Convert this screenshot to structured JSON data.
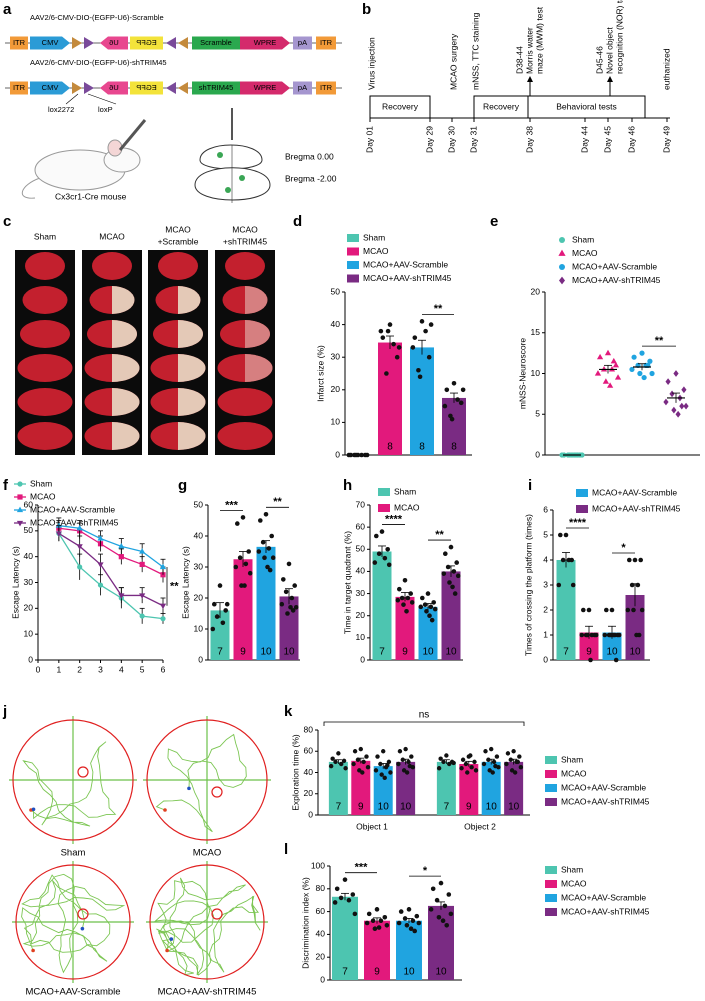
{
  "panel_labels": [
    "a",
    "b",
    "c",
    "d",
    "e",
    "f",
    "g",
    "h",
    "i",
    "j",
    "k",
    "l"
  ],
  "construct": {
    "vectors": [
      {
        "title": "AAV2/6-CMV-DIO-(EGFP-U6)-Scramble",
        "elements": [
          "ITR",
          "CMV",
          "U6",
          "EGFP",
          "Scramble",
          "WPRE",
          "pA",
          "ITR"
        ]
      },
      {
        "title": "AAV2/6-CMV-DIO-(EGFP-U6)-shTRIM45",
        "elements": [
          "ITR",
          "CMV",
          "U6",
          "EGFP",
          "shTRIM45",
          "WPRE",
          "pA",
          "ITR"
        ]
      }
    ],
    "lox_labels": [
      "lox2272",
      "loxP"
    ],
    "mouse": "Cx3cr1-Cre mouse",
    "bregma": [
      "Bregma 0.00",
      "Bregma -2.00"
    ]
  },
  "timeline": {
    "events": [
      [
        "Virus injection"
      ],
      [
        "MCAO surgery"
      ],
      [
        "mNSS, TTC staining"
      ],
      [
        "D38-44",
        "Morris water",
        "maze (MWM) test"
      ],
      [
        "D45-46",
        "Novel object",
        "recognition (NOR) task"
      ],
      [
        "euthanized"
      ]
    ],
    "boxes": [
      "Recovery",
      "Recovery",
      "Behavioral tests"
    ],
    "days": [
      "Day 01",
      "Day 29",
      "Day 30",
      "Day 31",
      "Day 38",
      "Day 44",
      "Day 45",
      "Day 46",
      "Day 49"
    ]
  },
  "slices": {
    "groups": [
      [
        "Sham"
      ],
      [
        "MCAO"
      ],
      [
        "MCAO",
        "+Scramble"
      ],
      [
        "MCAO",
        "+shTRIM45"
      ]
    ]
  },
  "mazes": {
    "groups": [
      "Sham",
      "MCAO",
      "MCAO+AAV-Scramble",
      "MCAO+AAV-shTRIM45"
    ]
  },
  "chart_data": [
    {
      "type": "bar",
      "ylabel": "Infarct size (%)",
      "ylim": [
        0,
        50
      ],
      "yticks": [
        0,
        10,
        20,
        30,
        40,
        50
      ],
      "values": [
        0,
        34.5,
        33,
        17.5
      ],
      "errors": [
        0,
        2,
        2.2,
        1.5
      ],
      "points": [
        [
          0,
          0,
          0,
          0,
          0,
          0,
          0,
          0
        ],
        [
          40,
          36,
          30,
          25,
          34,
          38,
          33,
          38
        ],
        [
          41,
          36,
          30,
          26,
          38,
          33,
          40,
          24
        ],
        [
          22,
          20,
          16,
          12,
          17,
          15,
          20,
          11
        ]
      ],
      "n_labels": [
        null,
        "8",
        "8",
        "8"
      ],
      "colors": [
        "#4dc5b0",
        "#e2197c",
        "#20a4e0",
        "#7a2b83"
      ],
      "legend": [
        {
          "name": "Sham",
          "color": "#4dc5b0"
        },
        {
          "name": "MCAO",
          "color": "#e2197c"
        },
        {
          "name": "MCAO+AAV-Scramble",
          "color": "#20a4e0"
        },
        {
          "name": "MCAO+AAV-shTRIM45",
          "color": "#7a2b83"
        }
      ],
      "significance": [
        {
          "groups": [
            2,
            3
          ],
          "label": "**"
        }
      ]
    },
    {
      "type": "dot",
      "ylabel": "mNSS-Neuroscore",
      "ylim": [
        0,
        20
      ],
      "yticks": [
        0,
        5,
        10,
        15,
        20
      ],
      "values": [
        0,
        10.5,
        10.8,
        7
      ],
      "errors": [
        0,
        0.5,
        0.4,
        0.6
      ],
      "points": [
        [
          0,
          0,
          0,
          0,
          0,
          0,
          0,
          0,
          0,
          0
        ],
        [
          12.5,
          12,
          11,
          10.5,
          10.5,
          10,
          9.5,
          9,
          8.5,
          11.5
        ],
        [
          12.5,
          12,
          11.5,
          11,
          11,
          10.5,
          10,
          10,
          9.5,
          11
        ],
        [
          10,
          9,
          8,
          7.5,
          7,
          6.5,
          6,
          5.5,
          5,
          6
        ]
      ],
      "colors": [
        "#4dc5b0",
        "#e2197c",
        "#20a4e0",
        "#7a2b83"
      ],
      "markers": [
        "circle",
        "triangle",
        "circle",
        "diamond"
      ],
      "legend": [
        {
          "name": "Sham",
          "color": "#4dc5b0"
        },
        {
          "name": "MCAO",
          "color": "#e2197c"
        },
        {
          "name": "MCAO+AAV-Scramble",
          "color": "#20a4e0"
        },
        {
          "name": "MCAO+AAV-shTRIM45",
          "color": "#7a2b83"
        }
      ],
      "significance": [
        {
          "groups": [
            2,
            3
          ],
          "label": "**"
        }
      ]
    },
    {
      "type": "line",
      "ylabel": "Escape Latency (s)",
      "x": [
        1,
        2,
        3,
        4,
        5,
        6
      ],
      "xlim": [
        0,
        6
      ],
      "xticks": [
        0,
        1,
        2,
        3,
        4,
        5,
        6
      ],
      "ylim": [
        0,
        60
      ],
      "yticks": [
        0,
        10,
        20,
        30,
        40,
        50,
        60
      ],
      "annotation": "**",
      "series": [
        {
          "name": "Sham",
          "color": "#4dc5b0",
          "marker": "circle",
          "values": [
            49,
            36,
            29,
            24,
            17,
            16
          ],
          "errors": [
            3,
            5,
            4,
            4,
            3,
            2
          ]
        },
        {
          "name": "MCAO",
          "color": "#e2197c",
          "marker": "square",
          "values": [
            51,
            50,
            45,
            40,
            37,
            33
          ],
          "errors": [
            3,
            3,
            3,
            3,
            3,
            3
          ]
        },
        {
          "name": "MCAO+AAV-Scramble",
          "color": "#20a4e0",
          "marker": "triangle",
          "values": [
            52,
            51,
            47,
            44,
            42,
            36
          ],
          "errors": [
            3,
            3,
            3,
            3,
            3,
            3
          ]
        },
        {
          "name": "MCAO+AAV-shTRIM45",
          "color": "#7a2b83",
          "marker": "itriangle",
          "values": [
            49,
            44,
            37,
            25,
            25,
            21
          ],
          "errors": [
            3,
            4,
            4,
            3,
            3,
            3
          ]
        }
      ]
    },
    {
      "type": "bar",
      "ylabel": "Escape Latency (s)",
      "ylim": [
        0,
        50
      ],
      "yticks": [
        0,
        10,
        20,
        30,
        40,
        50
      ],
      "values": [
        16,
        32.5,
        36.5,
        20.5
      ],
      "errors": [
        2.5,
        2.5,
        2,
        2.5
      ],
      "points": [
        [
          24,
          18,
          16,
          14,
          12,
          10,
          18
        ],
        [
          46,
          44,
          35,
          33,
          31,
          30,
          28,
          24,
          24
        ],
        [
          47,
          45,
          40,
          38,
          36,
          35,
          33,
          33,
          30,
          29
        ],
        [
          31,
          26,
          24,
          22,
          20,
          18,
          17,
          15,
          17,
          16
        ]
      ],
      "n_labels": [
        "7",
        "9",
        "10",
        "10"
      ],
      "colors": [
        "#4dc5b0",
        "#e2197c",
        "#20a4e0",
        "#7a2b83"
      ],
      "significance": [
        {
          "groups": [
            0,
            1
          ],
          "label": "***"
        },
        {
          "groups": [
            2,
            3
          ],
          "label": "**"
        }
      ]
    },
    {
      "type": "bar",
      "ylabel": "Time in target quadrant (%)",
      "ylim": [
        0,
        70
      ],
      "yticks": [
        0,
        10,
        20,
        30,
        40,
        50,
        60,
        70
      ],
      "values": [
        49,
        28.5,
        24,
        40
      ],
      "errors": [
        2.5,
        2,
        1.5,
        2.5
      ],
      "points": [
        [
          58,
          56,
          50,
          48,
          46,
          44,
          43
        ],
        [
          36,
          32,
          30,
          28,
          28,
          27,
          26,
          25,
          22
        ],
        [
          30,
          28,
          26,
          25,
          24,
          24,
          23,
          22,
          20,
          18
        ],
        [
          51,
          48,
          44,
          42,
          40,
          39,
          38,
          35,
          33,
          30
        ]
      ],
      "n_labels": [
        "7",
        "9",
        "10",
        "10"
      ],
      "colors": [
        "#4dc5b0",
        "#e2197c",
        "#20a4e0",
        "#7a2b83"
      ],
      "legend": [
        {
          "name": "Sham",
          "color": "#4dc5b0"
        },
        {
          "name": "MCAO",
          "color": "#e2197c"
        }
      ],
      "significance": [
        {
          "groups": [
            0,
            1
          ],
          "label": "****"
        },
        {
          "groups": [
            2,
            3
          ],
          "label": "**"
        }
      ]
    },
    {
      "type": "bar",
      "ylabel": "Times of crossing the platform (times)",
      "ylim": [
        0,
        6
      ],
      "yticks": [
        0,
        1,
        2,
        3,
        4,
        5,
        6
      ],
      "values": [
        4,
        1.1,
        1.1,
        2.6
      ],
      "errors": [
        0.3,
        0.25,
        0.25,
        0.45
      ],
      "points": [
        [
          5,
          5,
          4,
          4,
          4,
          3,
          3
        ],
        [
          2,
          2,
          1,
          1,
          1,
          1,
          1,
          1,
          0
        ],
        [
          2,
          2,
          1,
          1,
          1,
          1,
          1,
          1,
          1,
          0
        ],
        [
          4,
          4,
          4,
          3,
          3,
          2,
          2,
          2,
          1,
          1
        ]
      ],
      "n_labels": [
        "7",
        "9",
        "10",
        "10"
      ],
      "colors": [
        "#4dc5b0",
        "#e2197c",
        "#20a4e0",
        "#7a2b83"
      ],
      "legend": [
        {
          "name": "MCAO+AAV-Scramble",
          "color": "#20a4e0"
        },
        {
          "name": "MCAO+AAV-shTRIM45",
          "color": "#7a2b83"
        }
      ],
      "significance": [
        {
          "groups": [
            0,
            1
          ],
          "label": "****"
        },
        {
          "groups": [
            2,
            3
          ],
          "label": "*"
        }
      ]
    },
    {
      "type": "grouped_bar",
      "ylabel": "Exploration time (%)",
      "categories": [
        "Object 1",
        "Object 2"
      ],
      "ylim": [
        0,
        80
      ],
      "yticks": [
        0,
        20,
        40,
        60,
        80
      ],
      "annotation": "ns",
      "series": [
        {
          "name": "Sham",
          "color": "#4dc5b0",
          "values": [
            50,
            50
          ],
          "errors": [
            2,
            2
          ],
          "n_labels": [
            "7",
            "7"
          ],
          "points": [
            [
              58,
              53,
              51,
              50,
              48,
              46,
              44
            ],
            [
              56,
              53,
              50,
              50,
              48,
              44,
              49
            ]
          ]
        },
        {
          "name": "MCAO",
          "color": "#e2197c",
          "values": [
            51,
            48
          ],
          "errors": [
            2.5,
            2.5
          ],
          "n_labels": [
            "9",
            "9"
          ],
          "points": [
            [
              62,
              60,
              55,
              52,
              50,
              48,
              45,
              42,
              40
            ],
            [
              55,
              52,
              50,
              48,
              45,
              44,
              42,
              40,
              56
            ]
          ]
        },
        {
          "name": "MCAO+AAV-Scramble",
          "color": "#20a4e0",
          "values": [
            46,
            50
          ],
          "errors": [
            2.5,
            2.5
          ],
          "n_labels": [
            "10",
            "10"
          ],
          "points": [
            [
              60,
              55,
              50,
              48,
              45,
              42,
              40,
              38,
              35,
              47
            ],
            [
              62,
              60,
              55,
              52,
              50,
              48,
              45,
              42,
              40,
              46
            ]
          ]
        },
        {
          "name": "MCAO+AAV-shTRIM45",
          "color": "#7a2b83",
          "values": [
            50,
            50
          ],
          "errors": [
            2.5,
            2.5
          ],
          "n_labels": [
            "10",
            "10"
          ],
          "points": [
            [
              62,
              60,
              55,
              52,
              50,
              48,
              45,
              42,
              40,
              46
            ],
            [
              60,
              58,
              55,
              52,
              50,
              48,
              45,
              42,
              40,
              50
            ]
          ]
        }
      ]
    },
    {
      "type": "bar",
      "ylabel": "Discrimination index (%)",
      "ylim": [
        0,
        100
      ],
      "yticks": [
        0,
        20,
        40,
        60,
        80,
        100
      ],
      "values": [
        73,
        52,
        52,
        65
      ],
      "errors": [
        3,
        2.5,
        2,
        3.5
      ],
      "points": [
        [
          88,
          80,
          75,
          72,
          70,
          68,
          58
        ],
        [
          62,
          58,
          55,
          52,
          52,
          50,
          48,
          45,
          46
        ],
        [
          62,
          60,
          56,
          54,
          52,
          50,
          50,
          48,
          45,
          43
        ],
        [
          85,
          80,
          75,
          70,
          65,
          62,
          58,
          55,
          52,
          48
        ]
      ],
      "n_labels": [
        "7",
        "9",
        "10",
        "10"
      ],
      "colors": [
        "#4dc5b0",
        "#e2197c",
        "#20a4e0",
        "#7a2b83"
      ],
      "legend": [
        {
          "name": "Sham",
          "color": "#4dc5b0"
        },
        {
          "name": "MCAO",
          "color": "#e2197c"
        },
        {
          "name": "MCAO+AAV-Scramble",
          "color": "#20a4e0"
        },
        {
          "name": "MCAO+AAV-shTRIM45",
          "color": "#7a2b83"
        }
      ],
      "significance": [
        {
          "groups": [
            0,
            1
          ],
          "label": "***"
        },
        {
          "groups": [
            2,
            3
          ],
          "label": "*"
        }
      ]
    }
  ]
}
